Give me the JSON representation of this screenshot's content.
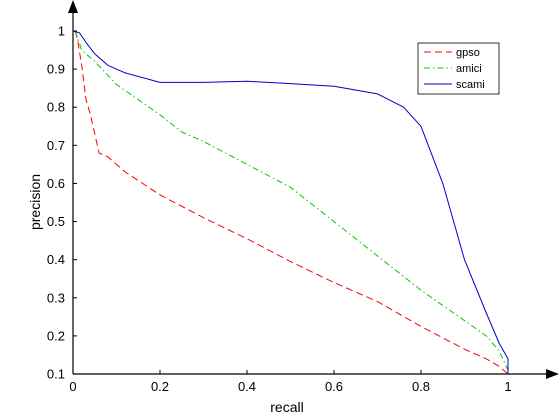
{
  "chart_data": {
    "type": "line",
    "xlabel": "recall",
    "ylabel": "precision",
    "xlim": [
      0,
      1
    ],
    "ylim": [
      0.1,
      1
    ],
    "x_ticks": [
      "0",
      "0.2",
      "0.4",
      "0.6",
      "0.8",
      "1"
    ],
    "x_tick_values": [
      0,
      0.2,
      0.4,
      0.6,
      0.8,
      1
    ],
    "y_ticks": [
      "0.1",
      "0.2",
      "0.3",
      "0.4",
      "0.5",
      "0.6",
      "0.7",
      "0.8",
      "0.9",
      "1"
    ],
    "y_tick_values": [
      0.1,
      0.2,
      0.3,
      0.4,
      0.5,
      0.6,
      0.7,
      0.8,
      0.9,
      1
    ],
    "grid": false,
    "legend_position": "top-right",
    "series": [
      {
        "name": "gpso",
        "color": "#ff0000",
        "dash": "dashed",
        "points": [
          [
            0.005,
            1.0
          ],
          [
            0.01,
            0.98
          ],
          [
            0.02,
            0.91
          ],
          [
            0.03,
            0.82
          ],
          [
            0.04,
            0.78
          ],
          [
            0.06,
            0.68
          ],
          [
            0.08,
            0.67
          ],
          [
            0.12,
            0.63
          ],
          [
            0.2,
            0.57
          ],
          [
            0.3,
            0.51
          ],
          [
            0.4,
            0.455
          ],
          [
            0.5,
            0.395
          ],
          [
            0.6,
            0.34
          ],
          [
            0.7,
            0.29
          ],
          [
            0.8,
            0.225
          ],
          [
            0.9,
            0.165
          ],
          [
            0.95,
            0.14
          ],
          [
            0.98,
            0.12
          ],
          [
            1.0,
            0.1
          ]
        ]
      },
      {
        "name": "amici",
        "color": "#00cc00",
        "dash": "dashdot",
        "points": [
          [
            0.005,
            1.0
          ],
          [
            0.02,
            0.95
          ],
          [
            0.05,
            0.92
          ],
          [
            0.1,
            0.86
          ],
          [
            0.2,
            0.78
          ],
          [
            0.25,
            0.735
          ],
          [
            0.3,
            0.71
          ],
          [
            0.4,
            0.65
          ],
          [
            0.5,
            0.59
          ],
          [
            0.6,
            0.5
          ],
          [
            0.7,
            0.41
          ],
          [
            0.8,
            0.32
          ],
          [
            0.9,
            0.24
          ],
          [
            0.95,
            0.2
          ],
          [
            0.98,
            0.16
          ],
          [
            1.0,
            0.11
          ]
        ]
      },
      {
        "name": "scami",
        "color": "#0000cc",
        "dash": "solid",
        "points": [
          [
            0.0,
            1.0
          ],
          [
            0.015,
            0.995
          ],
          [
            0.03,
            0.97
          ],
          [
            0.05,
            0.94
          ],
          [
            0.08,
            0.91
          ],
          [
            0.12,
            0.89
          ],
          [
            0.2,
            0.865
          ],
          [
            0.3,
            0.865
          ],
          [
            0.4,
            0.868
          ],
          [
            0.5,
            0.862
          ],
          [
            0.6,
            0.855
          ],
          [
            0.7,
            0.835
          ],
          [
            0.76,
            0.8
          ],
          [
            0.8,
            0.75
          ],
          [
            0.85,
            0.6
          ],
          [
            0.9,
            0.4
          ],
          [
            0.95,
            0.26
          ],
          [
            0.98,
            0.18
          ],
          [
            1.0,
            0.14
          ],
          [
            1.0,
            0.1
          ]
        ]
      }
    ]
  }
}
